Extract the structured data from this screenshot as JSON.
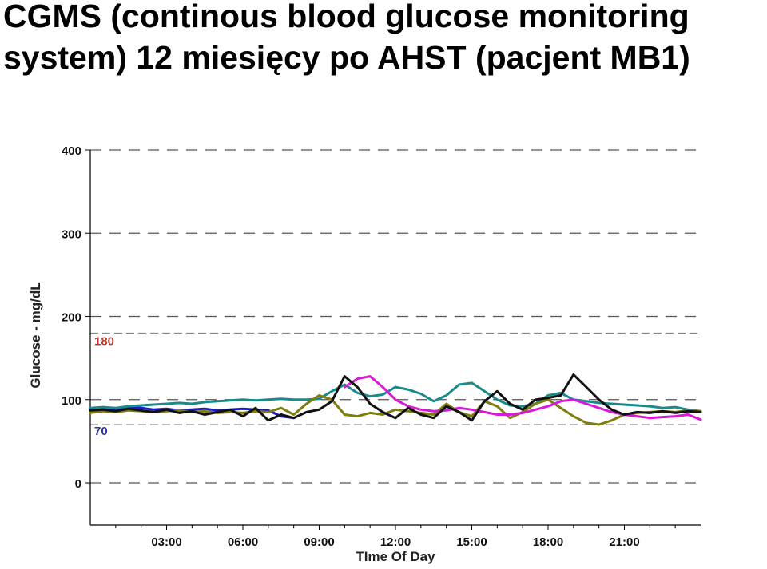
{
  "slide": {
    "title_line1": "CGMS (continous blood glucose monitoring",
    "title_line2": "system) 12 miesięcy po AHST (pacjent MB1)"
  },
  "chart_data": {
    "type": "line",
    "xlabel": "TIme Of Day",
    "ylabel": "Glucose - mg/dL",
    "xlim": [
      0,
      24
    ],
    "ylim": [
      0,
      400
    ],
    "x_ticks": [
      {
        "value": 3,
        "label": "03:00"
      },
      {
        "value": 6,
        "label": "06:00"
      },
      {
        "value": 9,
        "label": "09:00"
      },
      {
        "value": 12,
        "label": "12:00"
      },
      {
        "value": 15,
        "label": "15:00"
      },
      {
        "value": 18,
        "label": "18:00"
      },
      {
        "value": 21,
        "label": "21:00"
      }
    ],
    "y_ticks": [
      {
        "value": 0,
        "label": "0"
      },
      {
        "value": 100,
        "label": "100"
      },
      {
        "value": 200,
        "label": "200"
      },
      {
        "value": 300,
        "label": "300"
      },
      {
        "value": 400,
        "label": "400"
      }
    ],
    "grid": "horizontal dashed",
    "reference_lines": [
      {
        "value": 180,
        "label": "180",
        "color": "#c0392b"
      },
      {
        "value": 70,
        "label": "70",
        "color": "#2e3a9e"
      }
    ],
    "series": [
      {
        "color": "#1a1ad0",
        "x": [
          0.0,
          0.5,
          1.0,
          1.5,
          2.0,
          2.5,
          3.0,
          3.5,
          4.0,
          4.5,
          5.0,
          5.5,
          6.0,
          6.5,
          7.0,
          7.5,
          8.0
        ],
        "y": [
          88,
          89,
          88,
          91,
          90,
          88,
          89,
          87,
          88,
          89,
          87,
          88,
          89,
          88,
          87,
          80,
          78
        ]
      },
      {
        "color": "#1a8a8a",
        "x": [
          0.0,
          0.5,
          1.0,
          1.5,
          2.0,
          2.5,
          3.0,
          3.5,
          4.0,
          4.5,
          5.0,
          5.5,
          6.0,
          6.5,
          7.0,
          7.5,
          8.0,
          8.5,
          9.0,
          9.5,
          10.0,
          10.5,
          11.0,
          11.5,
          12.0,
          12.5,
          13.0,
          13.5,
          14.0,
          14.5,
          15.0,
          15.5,
          16.0,
          16.5,
          17.0,
          17.5,
          18.0,
          18.5,
          19.0,
          19.5,
          20.0,
          20.5,
          21.0,
          21.5,
          22.0,
          22.5,
          23.0,
          23.5,
          24.0
        ],
        "y": [
          90,
          91,
          90,
          92,
          93,
          94,
          95,
          96,
          95,
          97,
          98,
          99,
          100,
          99,
          100,
          101,
          100,
          100,
          101,
          110,
          118,
          108,
          104,
          106,
          115,
          112,
          107,
          98,
          105,
          118,
          120,
          110,
          100,
          93,
          92,
          95,
          105,
          108,
          100,
          98,
          96,
          95,
          94,
          93,
          92,
          90,
          91,
          88,
          86
        ]
      },
      {
        "color": "#7d7d10",
        "x": [
          0.0,
          0.5,
          1.0,
          1.5,
          2.0,
          2.5,
          3.0,
          3.5,
          4.0,
          4.5,
          5.0,
          5.5,
          6.0,
          6.5,
          7.0,
          7.5,
          8.0,
          8.5,
          9.0,
          9.5,
          10.0,
          10.5,
          11.0,
          11.5,
          12.0,
          12.5,
          13.0,
          13.5,
          14.0,
          14.5,
          15.0,
          15.5,
          16.0,
          16.5,
          17.0,
          17.5,
          18.0,
          18.5,
          19.0,
          19.5,
          20.0,
          20.5,
          21.0,
          21.5,
          22.0,
          22.5,
          23.0,
          23.5,
          24.0
        ],
        "y": [
          84,
          86,
          85,
          87,
          86,
          85,
          86,
          87,
          85,
          86,
          84,
          85,
          84,
          86,
          85,
          90,
          82,
          95,
          105,
          100,
          82,
          80,
          84,
          82,
          88,
          86,
          84,
          82,
          95,
          85,
          80,
          98,
          92,
          78,
          85,
          95,
          100,
          90,
          80,
          72,
          70,
          75,
          82,
          84,
          85,
          86,
          85,
          87,
          86
        ]
      },
      {
        "color": "#d81ad8",
        "x": [
          10.0,
          10.5,
          11.0,
          11.5,
          12.0,
          12.5,
          13.0,
          13.5,
          14.0,
          14.5,
          15.0,
          15.5,
          16.0,
          16.5,
          17.0,
          17.5,
          18.0,
          18.5,
          19.0,
          19.5,
          20.0,
          20.5,
          21.0,
          21.5,
          22.0,
          22.5,
          23.0,
          23.5,
          24.0
        ],
        "y": [
          115,
          125,
          128,
          115,
          100,
          92,
          88,
          86,
          87,
          90,
          88,
          85,
          82,
          82,
          84,
          88,
          92,
          98,
          100,
          95,
          90,
          85,
          82,
          80,
          78,
          79,
          80,
          82,
          76
        ]
      },
      {
        "color": "#111111",
        "x": [
          0.0,
          0.5,
          1.0,
          1.5,
          2.0,
          2.5,
          3.0,
          3.5,
          4.0,
          4.5,
          5.0,
          5.5,
          6.0,
          6.5,
          7.0,
          7.5,
          8.0,
          8.5,
          9.0,
          9.5,
          10.0,
          10.5,
          11.0,
          11.5,
          12.0,
          12.5,
          13.0,
          13.5,
          14.0,
          14.5,
          15.0,
          15.5,
          16.0,
          16.5,
          17.0,
          17.5,
          18.0,
          18.5,
          19.0,
          19.5,
          20.0,
          20.5,
          21.0,
          21.5,
          22.0,
          22.5,
          23.0,
          23.5,
          24.0
        ],
        "y": [
          87,
          88,
          86,
          89,
          87,
          85,
          88,
          84,
          86,
          82,
          85,
          88,
          80,
          90,
          75,
          82,
          78,
          85,
          88,
          98,
          128,
          115,
          95,
          85,
          78,
          90,
          82,
          78,
          92,
          85,
          75,
          98,
          110,
          95,
          88,
          100,
          102,
          105,
          130,
          115,
          100,
          88,
          82,
          85,
          84,
          86,
          84,
          86,
          85
        ]
      }
    ]
  }
}
